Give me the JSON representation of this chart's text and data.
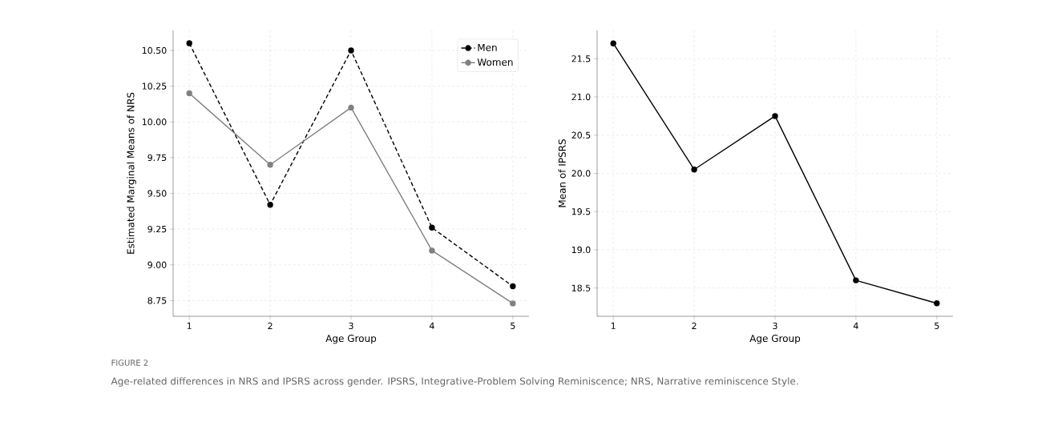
{
  "chart_data": [
    {
      "type": "line",
      "xlabel": "Age Group",
      "ylabel": "Estimated Marginal Means of NRS",
      "x": [
        1,
        2,
        3,
        4,
        5
      ],
      "series": [
        {
          "name": "Men",
          "color": "#000000",
          "line_style": "dashed",
          "values": [
            10.55,
            9.42,
            10.5,
            9.26,
            8.85
          ]
        },
        {
          "name": "Women",
          "color": "#808080",
          "line_style": "solid",
          "values": [
            10.2,
            9.7,
            10.1,
            9.1,
            8.73
          ]
        }
      ],
      "xlim": [
        0.8,
        5.2
      ],
      "xticks": [
        1,
        2,
        3,
        4,
        5
      ],
      "ylim": [
        8.64,
        10.64
      ],
      "yticks": [
        {
          "value": 8.75,
          "label": "8.75"
        },
        {
          "value": 9.0,
          "label": "9.00"
        },
        {
          "value": 9.25,
          "label": "9.25"
        },
        {
          "value": 9.5,
          "label": "9.50"
        },
        {
          "value": 9.75,
          "label": "9.75"
        },
        {
          "value": 10.0,
          "label": "10.00"
        },
        {
          "value": 10.25,
          "label": "10.25"
        },
        {
          "value": 10.5,
          "label": "10.50"
        }
      ],
      "grid": true,
      "legend": "top right",
      "marker": "circle",
      "annotations": [
        "FIGURE 2",
        "Age-related differences in NRS and IPSRS across gender. IPSRS, Integrative-Problem Solving Reminiscence; NRS, Narrative reminiscence Style."
      ]
    },
    {
      "type": "line",
      "xlabel": "Age Group",
      "ylabel": "Mean of IPSRS",
      "x": [
        1,
        2,
        3,
        4,
        5
      ],
      "series": [
        {
          "color": "#000000",
          "line_style": "solid",
          "values": [
            21.7,
            20.05,
            20.75,
            18.6,
            18.3
          ]
        }
      ],
      "xlim": [
        0.8,
        5.2
      ],
      "xticks": [
        1,
        2,
        3,
        4,
        5
      ],
      "ylim": [
        18.13,
        21.87
      ],
      "yticks": [
        {
          "value": 18.5,
          "label": "18.5"
        },
        {
          "value": 19.0,
          "label": "19.0"
        },
        {
          "value": 19.5,
          "label": "19.5"
        },
        {
          "value": 20.0,
          "label": "20.0"
        },
        {
          "value": 20.5,
          "label": "20.5"
        },
        {
          "value": 21.0,
          "label": "21.0"
        },
        {
          "value": 21.5,
          "label": "21.5"
        }
      ],
      "grid": true,
      "marker": "circle"
    }
  ]
}
